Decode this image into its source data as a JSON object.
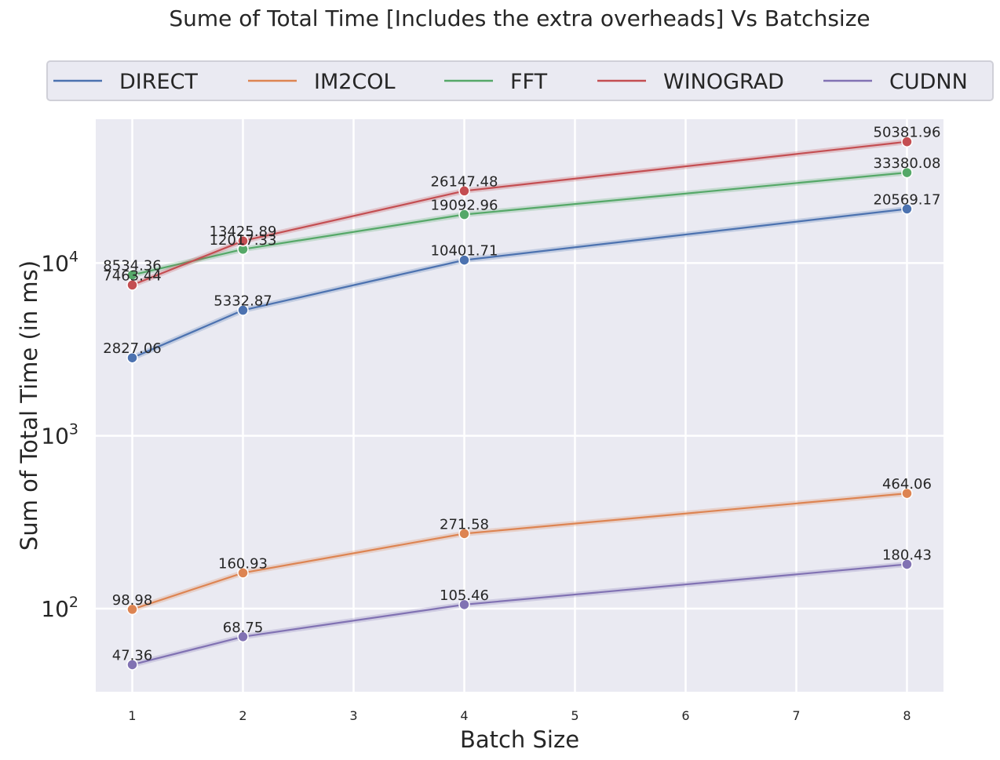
{
  "chart_data": {
    "type": "line",
    "title": "Sume of Total Time [Includes the extra overheads] Vs Batchsize",
    "xlabel": "Batch Size",
    "ylabel": "Sum of Total Time (in ms)",
    "yscale": "log",
    "xlim": [
      0.67,
      8.33
    ],
    "ylim": [
      33,
      68000
    ],
    "x_ticks": [
      "1",
      "2",
      "3",
      "4",
      "5",
      "6",
      "7",
      "8"
    ],
    "y_ticks": [
      {
        "base": "10",
        "exp": "2"
      },
      {
        "base": "10",
        "exp": "3"
      },
      {
        "base": "10",
        "exp": "4"
      }
    ],
    "grid": true,
    "legend_position": "top, outside plot, single row",
    "x": [
      1,
      2,
      4,
      8
    ],
    "series": [
      {
        "name": "DIRECT",
        "color": "#4c72b0",
        "values": [
          2827.06,
          5332.87,
          10401.71,
          20569.17
        ],
        "labels": [
          "2827.06",
          "5332.87",
          "10401.71",
          "20569.17"
        ]
      },
      {
        "name": "IM2COL",
        "color": "#dd8452",
        "values": [
          98.98,
          160.93,
          271.58,
          464.06
        ],
        "labels": [
          "98.98",
          "160.93",
          "271.58",
          "464.06"
        ]
      },
      {
        "name": "FFT",
        "color": "#55a868",
        "values": [
          8534.36,
          12017.33,
          19092.96,
          33380.08
        ],
        "labels": [
          "8534.36",
          "12017.33",
          "19092.96",
          "33380.08"
        ]
      },
      {
        "name": "WINOGRAD",
        "color": "#c44e52",
        "values": [
          7463.44,
          13425.89,
          26147.48,
          50381.96
        ],
        "labels": [
          "7463.44",
          "13425.89",
          "26147.48",
          "50381.96"
        ]
      },
      {
        "name": "CUDNN",
        "color": "#8172b3",
        "values": [
          47.36,
          68.75,
          105.46,
          180.43
        ],
        "labels": [
          "47.36",
          "68.75",
          "105.46",
          "180.43"
        ]
      }
    ]
  }
}
